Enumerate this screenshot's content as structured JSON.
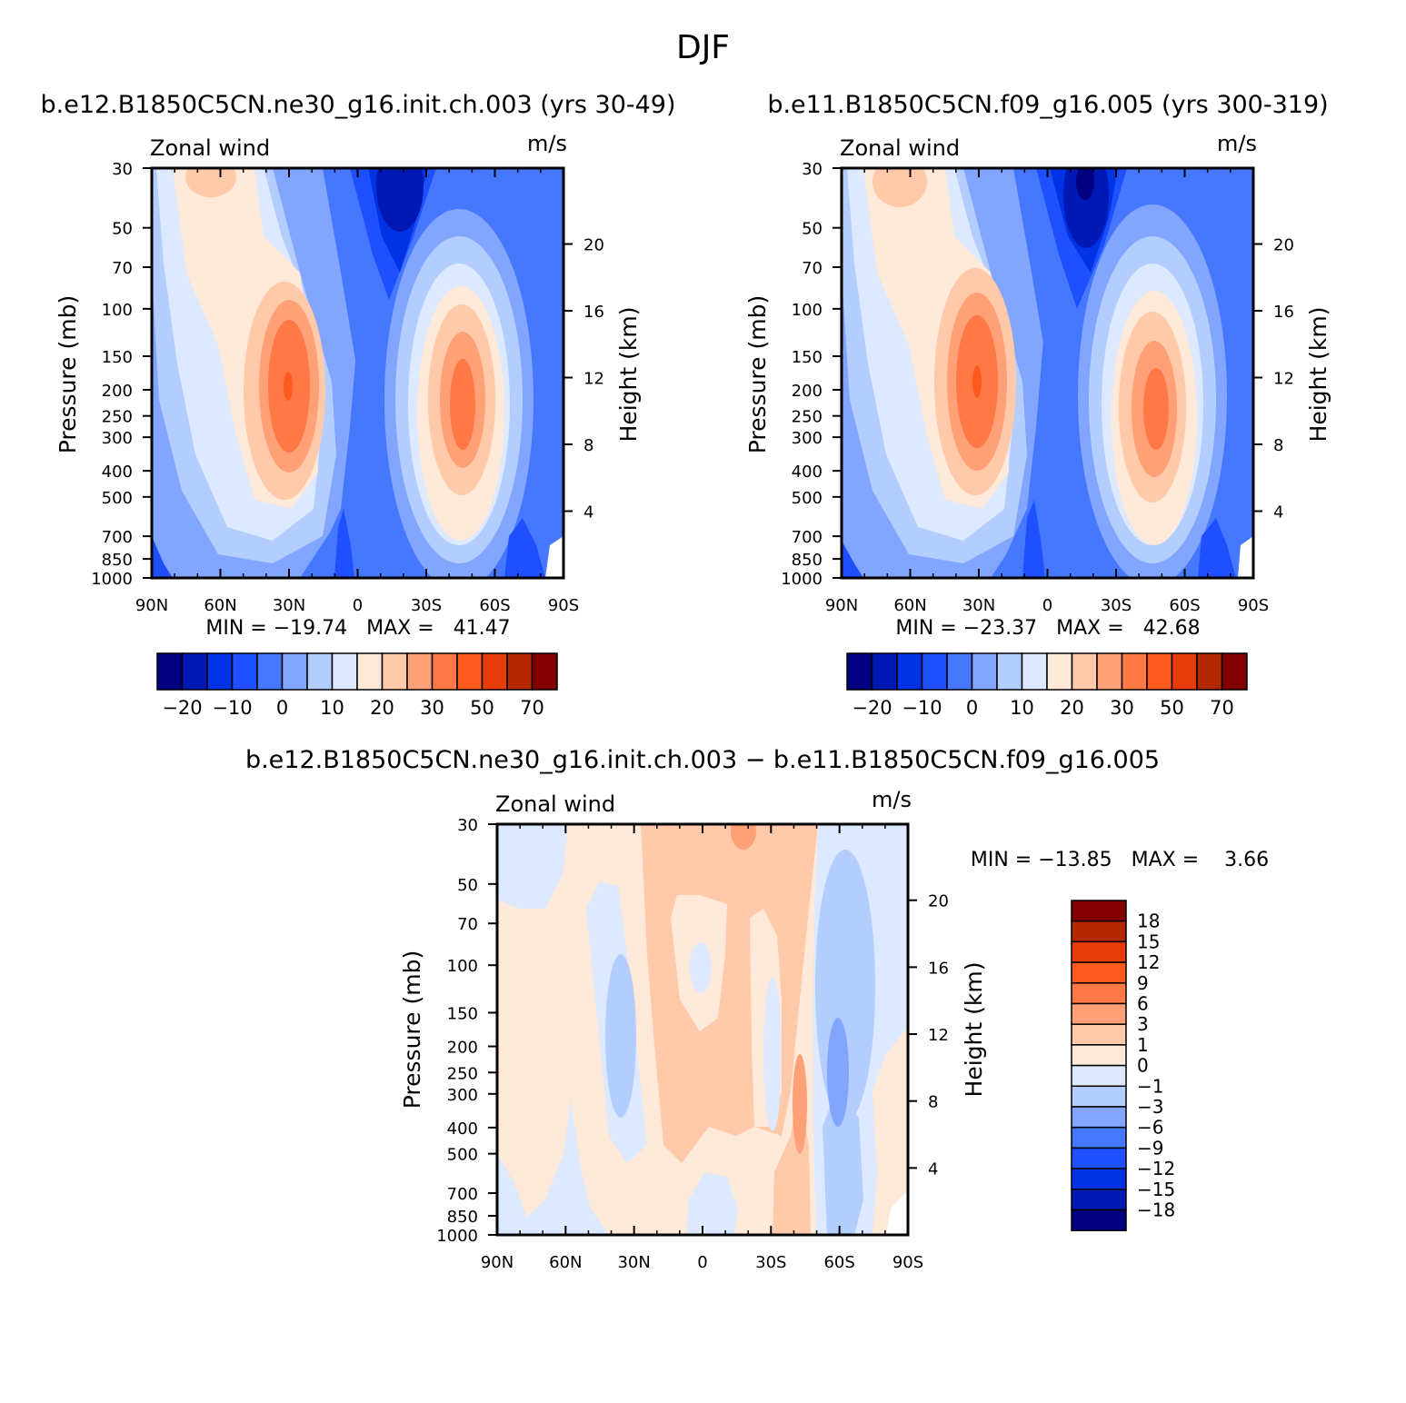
{
  "page_title": "DJF",
  "colors": {
    "abs_levels": [
      "#000080",
      "#0019b4",
      "#0032e6",
      "#1e50ff",
      "#4678ff",
      "#82a5ff",
      "#b4cdff",
      "#dce9ff",
      "#ffe9d9",
      "#ffc9aa",
      "#ffa076",
      "#ff7846",
      "#ff5a1e",
      "#e63c0a",
      "#b42800",
      "#820000"
    ],
    "diff_levels": [
      "#000080",
      "#0019b4",
      "#0032e6",
      "#1e50ff",
      "#4678ff",
      "#82a5ff",
      "#b4cdff",
      "#dce9ff",
      "#ffe9d9",
      "#ffc9aa",
      "#ffa076",
      "#ff7846",
      "#ff5a1e",
      "#e63c0a",
      "#b42800",
      "#820000"
    ]
  },
  "chart_data": [
    {
      "type": "heatmap",
      "title": "b.e12.B1850C5CN.ne30_g16.init.ch.003 (yrs 30-49)",
      "left_label": "Zonal wind",
      "right_label": "m/s",
      "xlabel": "",
      "ylabel": "Pressure (mb)",
      "ylabel_right": "Height (km)",
      "x_ticks": [
        "90N",
        "60N",
        "30N",
        "0",
        "30S",
        "60S",
        "90S"
      ],
      "y_ticks": [
        "30",
        "50",
        "70",
        "100",
        "150",
        "200",
        "250",
        "300",
        "400",
        "500",
        "700",
        "850",
        "1000"
      ],
      "y_right_ticks": [
        "20",
        "16",
        "12",
        "8",
        "4"
      ],
      "ylim": [
        1000,
        30
      ],
      "y_scale": "log",
      "min_max": "MIN = −19.74   MAX =   41.47",
      "colorbar_ticks": [
        "−20",
        "−10",
        "0",
        "10",
        "20",
        "30",
        "50",
        "70"
      ],
      "jets": [
        {
          "lat": 30,
          "p": 200,
          "max": 41.47
        },
        {
          "lat": -45,
          "p": 220,
          "max": 38
        }
      ],
      "min": -19.74,
      "max": 41.47
    },
    {
      "type": "heatmap",
      "title": "b.e11.B1850C5CN.f09_g16.005 (yrs 300-319)",
      "left_label": "Zonal wind",
      "right_label": "m/s",
      "xlabel": "",
      "ylabel": "Pressure (mb)",
      "ylabel_right": "Height (km)",
      "x_ticks": [
        "90N",
        "60N",
        "30N",
        "0",
        "30S",
        "60S",
        "90S"
      ],
      "y_ticks": [
        "30",
        "50",
        "70",
        "100",
        "150",
        "200",
        "250",
        "300",
        "400",
        "500",
        "700",
        "850",
        "1000"
      ],
      "y_right_ticks": [
        "20",
        "16",
        "12",
        "8",
        "4"
      ],
      "ylim": [
        1000,
        30
      ],
      "y_scale": "log",
      "min_max": "MIN = −23.37   MAX =   42.68",
      "colorbar_ticks": [
        "−20",
        "−10",
        "0",
        "10",
        "20",
        "30",
        "50",
        "70"
      ],
      "jets": [
        {
          "lat": 30,
          "p": 200,
          "max": 42.68
        },
        {
          "lat": -48,
          "p": 230,
          "max": 36
        }
      ],
      "min": -23.37,
      "max": 42.68
    },
    {
      "type": "heatmap",
      "title": "b.e12.B1850C5CN.ne30_g16.init.ch.003 − b.e11.B1850C5CN.f09_g16.005",
      "left_label": "Zonal wind",
      "right_label": "m/s",
      "xlabel": "",
      "ylabel": "Pressure (mb)",
      "ylabel_right": "Height (km)",
      "x_ticks": [
        "90N",
        "60N",
        "30N",
        "0",
        "30S",
        "60S",
        "90S"
      ],
      "y_ticks": [
        "30",
        "50",
        "70",
        "100",
        "150",
        "200",
        "250",
        "300",
        "400",
        "500",
        "700",
        "850",
        "1000"
      ],
      "y_right_ticks": [
        "20",
        "16",
        "12",
        "8",
        "4"
      ],
      "ylim": [
        1000,
        30
      ],
      "y_scale": "log",
      "min_max": "MIN = −13.85   MAX =    3.66",
      "colorbar_ticks": [
        "18",
        "15",
        "12",
        "9",
        "6",
        "3",
        "1",
        "0",
        "−1",
        "−3",
        "−6",
        "−9",
        "−12",
        "−15",
        "−18"
      ],
      "min": -13.85,
      "max": 3.66
    }
  ]
}
